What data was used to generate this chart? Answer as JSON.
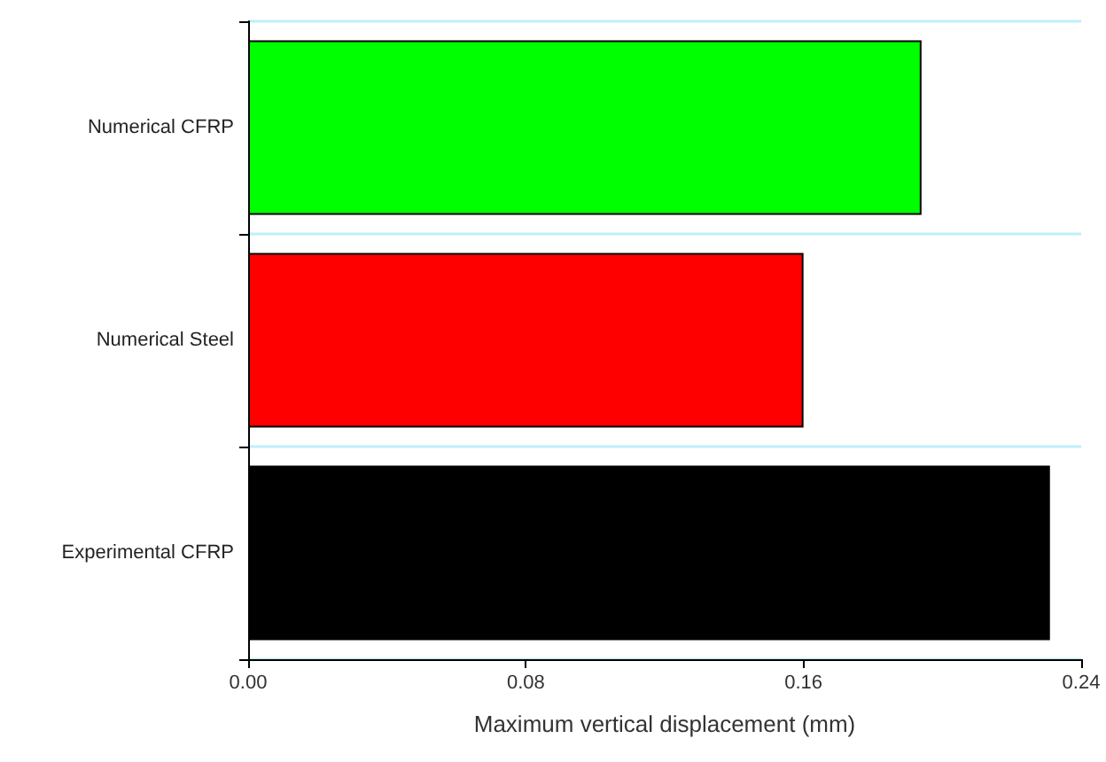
{
  "chart_data": {
    "type": "bar",
    "orientation": "horizontal",
    "xlabel": "Maximum vertical displacement (mm)",
    "categories": [
      "Numerical CFRP",
      "Numerical Steel",
      "Experimental CFRP"
    ],
    "values": [
      0.194,
      0.16,
      0.231
    ],
    "colors": [
      "#00ff00",
      "#ff0000",
      "#000000"
    ],
    "xlim": [
      0,
      0.24
    ],
    "xticks": [
      {
        "value": 0,
        "label": "0.00"
      },
      {
        "value": 0.08,
        "label": "0.08"
      },
      {
        "value": 0.16,
        "label": "0.16"
      },
      {
        "value": 0.24,
        "label": "0.24"
      }
    ],
    "grid": "y"
  }
}
